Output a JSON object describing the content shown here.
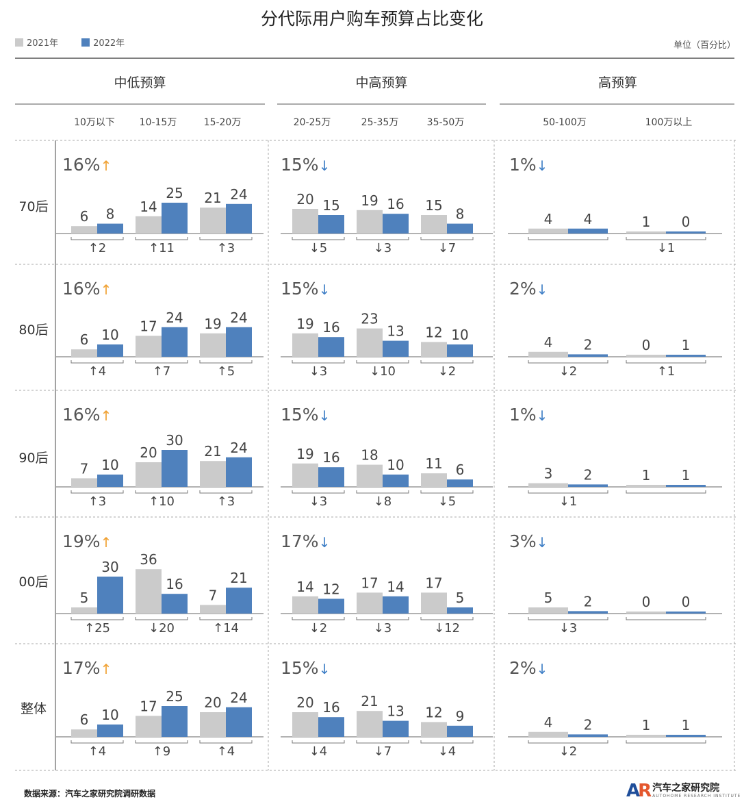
{
  "title": "分代际用户购车预算占比变化",
  "legend": [
    {
      "label": "2021年",
      "color": "#cbcbcb"
    },
    {
      "label": "2022年",
      "color": "#4f81bd"
    }
  ],
  "unit": "单位（百分比）",
  "source": "数据来源：汽车之家研究院调研数据",
  "logo": {
    "mark": "AR",
    "name": "汽车之家研究院",
    "sub": "AUTOHOME RESEARCH INSTITUTE"
  },
  "colors": {
    "y2021": "#cbcbcb",
    "y2022": "#4f81bd",
    "up": "#f0a030",
    "down": "#3f7fc6"
  },
  "chart_data": {
    "type": "bar",
    "groups": [
      {
        "name": "中低预算",
        "categories": [
          "10万以下",
          "10-15万",
          "15-20万"
        ]
      },
      {
        "name": "中高预算",
        "categories": [
          "20-25万",
          "25-35万",
          "35-50万"
        ]
      },
      {
        "name": "高预算",
        "categories": [
          "50-100万",
          "100万以上"
        ]
      }
    ],
    "rows": [
      {
        "generation": "70后",
        "group_share": [
          {
            "value": "16%",
            "dir": "up"
          },
          {
            "value": "15%",
            "dir": "down"
          },
          {
            "value": "1%",
            "dir": "down"
          }
        ],
        "values_2021": [
          6,
          14,
          21,
          20,
          19,
          15,
          4,
          1
        ],
        "values_2022": [
          8,
          25,
          24,
          15,
          16,
          8,
          4,
          0
        ],
        "changes": [
          "↑2",
          "↑11",
          "↑3",
          "↓5",
          "↓3",
          "↓7",
          "",
          "↓1"
        ]
      },
      {
        "generation": "80后",
        "group_share": [
          {
            "value": "16%",
            "dir": "up"
          },
          {
            "value": "15%",
            "dir": "down"
          },
          {
            "value": "2%",
            "dir": "down"
          }
        ],
        "values_2021": [
          6,
          17,
          19,
          19,
          23,
          12,
          4,
          0
        ],
        "values_2022": [
          10,
          24,
          24,
          16,
          13,
          10,
          2,
          1
        ],
        "changes": [
          "↑4",
          "↑7",
          "↑5",
          "↓3",
          "↓10",
          "↓2",
          "↓2",
          "↑1"
        ]
      },
      {
        "generation": "90后",
        "group_share": [
          {
            "value": "16%",
            "dir": "up"
          },
          {
            "value": "15%",
            "dir": "down"
          },
          {
            "value": "1%",
            "dir": "down"
          }
        ],
        "values_2021": [
          7,
          20,
          21,
          19,
          18,
          11,
          3,
          1
        ],
        "values_2022": [
          10,
          30,
          24,
          16,
          10,
          6,
          2,
          1
        ],
        "changes": [
          "↑3",
          "↑10",
          "↑3",
          "↓3",
          "↓8",
          "↓5",
          "↓1",
          ""
        ]
      },
      {
        "generation": "00后",
        "group_share": [
          {
            "value": "19%",
            "dir": "up"
          },
          {
            "value": "17%",
            "dir": "down"
          },
          {
            "value": "3%",
            "dir": "down"
          }
        ],
        "values_2021": [
          5,
          36,
          7,
          14,
          17,
          17,
          5,
          0
        ],
        "values_2022": [
          30,
          16,
          21,
          12,
          14,
          5,
          2,
          0
        ],
        "changes": [
          "↑25",
          "↓20",
          "↑14",
          "↓2",
          "↓3",
          "↓12",
          "↓3",
          ""
        ]
      },
      {
        "generation": "整体",
        "group_share": [
          {
            "value": "17%",
            "dir": "up"
          },
          {
            "value": "15%",
            "dir": "down"
          },
          {
            "value": "2%",
            "dir": "down"
          }
        ],
        "values_2021": [
          6,
          17,
          20,
          20,
          21,
          12,
          4,
          1
        ],
        "values_2022": [
          10,
          25,
          24,
          16,
          13,
          9,
          2,
          1
        ],
        "changes": [
          "↑4",
          "↑9",
          "↑4",
          "↓4",
          "↓7",
          "↓4",
          "↓2",
          ""
        ]
      }
    ],
    "legend_position": "top-left"
  }
}
